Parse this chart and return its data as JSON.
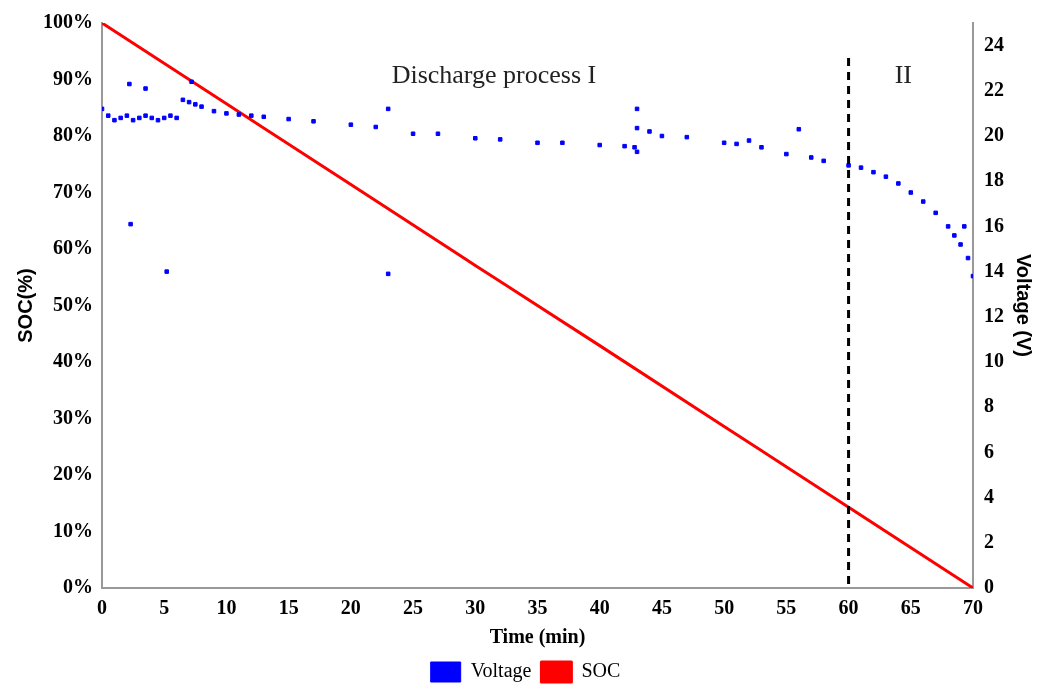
{
  "chart_data": {
    "type": "scatter",
    "xlabel": "Time (min)",
    "ylabel": "SOC(%)",
    "y2label": "Voltage (V)",
    "series": [
      {
        "name": "Voltage",
        "marker": "square",
        "axis": "y2",
        "color": "#0000ff",
        "x": [
          0,
          0.5,
          1,
          1.5,
          2,
          2.5,
          3,
          3.5,
          4,
          4.5,
          5,
          5.5,
          6,
          6.5,
          7,
          7.5,
          8,
          9,
          10,
          11,
          12,
          13,
          15,
          17,
          20,
          22,
          25,
          27,
          30,
          32,
          35,
          37,
          40,
          42,
          42.8,
          43,
          44,
          45,
          47,
          50,
          51,
          52,
          53,
          55,
          57,
          58,
          60,
          61,
          62,
          63,
          64,
          65,
          66,
          67,
          68,
          68.5,
          69,
          69.3,
          69.6,
          70,
          2.2,
          3.5,
          2.3,
          5.2,
          7.2,
          23,
          23,
          43,
          43,
          56
        ],
        "values": [
          21.2,
          20.9,
          20.7,
          20.8,
          20.9,
          20.7,
          20.8,
          20.9,
          20.8,
          20.7,
          20.8,
          20.9,
          20.8,
          21.6,
          21.5,
          21.4,
          21.3,
          21.1,
          21,
          20.95,
          20.9,
          20.85,
          20.75,
          20.65,
          20.5,
          20.4,
          20.1,
          20.1,
          19.9,
          19.85,
          19.7,
          19.7,
          19.6,
          19.55,
          19.5,
          20.35,
          20.2,
          20,
          19.95,
          19.7,
          19.65,
          19.8,
          19.5,
          19.2,
          19.05,
          18.9,
          18.7,
          18.6,
          18.4,
          18.2,
          17.9,
          17.5,
          17.1,
          16.6,
          16,
          15.6,
          15.2,
          16,
          14.6,
          13.8,
          22.3,
          22.1,
          16.1,
          14,
          22.4,
          13.9,
          21.2,
          21.2,
          19.3,
          20.3
        ]
      },
      {
        "name": "SOC",
        "type": "line",
        "color": "#ff0000",
        "x": [
          0,
          10,
          20,
          30,
          40,
          50,
          60,
          70
        ],
        "values": [
          100,
          85.7,
          71.4,
          57.1,
          42.9,
          28.6,
          14.3,
          0
        ]
      }
    ],
    "xlim": [
      0,
      70
    ],
    "xticks": [
      0,
      5,
      10,
      15,
      20,
      25,
      30,
      35,
      40,
      45,
      50,
      55,
      60,
      65,
      70
    ],
    "ylim": [
      0,
      100
    ],
    "yticks": [
      {
        "value": 0,
        "label": "0%"
      },
      {
        "value": 10,
        "label": "10%"
      },
      {
        "value": 20,
        "label": "20%"
      },
      {
        "value": 30,
        "label": "30%"
      },
      {
        "value": 40,
        "label": "40%"
      },
      {
        "value": 50,
        "label": "50%"
      },
      {
        "value": 60,
        "label": "60%"
      },
      {
        "value": 70,
        "label": "70%"
      },
      {
        "value": 80,
        "label": "80%"
      },
      {
        "value": 90,
        "label": "90%"
      },
      {
        "value": 100,
        "label": "100%"
      }
    ],
    "y2lim": [
      0,
      25
    ],
    "y2ticks": [
      0,
      2,
      4,
      6,
      8,
      10,
      12,
      14,
      16,
      18,
      20,
      22,
      24
    ],
    "ref_lines": [
      {
        "axis": "x",
        "value": 60,
        "color": "#000000",
        "line_style": "dashed"
      }
    ],
    "annotations": [
      "Discharge process I",
      "II"
    ],
    "grid": false,
    "legend": "bottom"
  }
}
